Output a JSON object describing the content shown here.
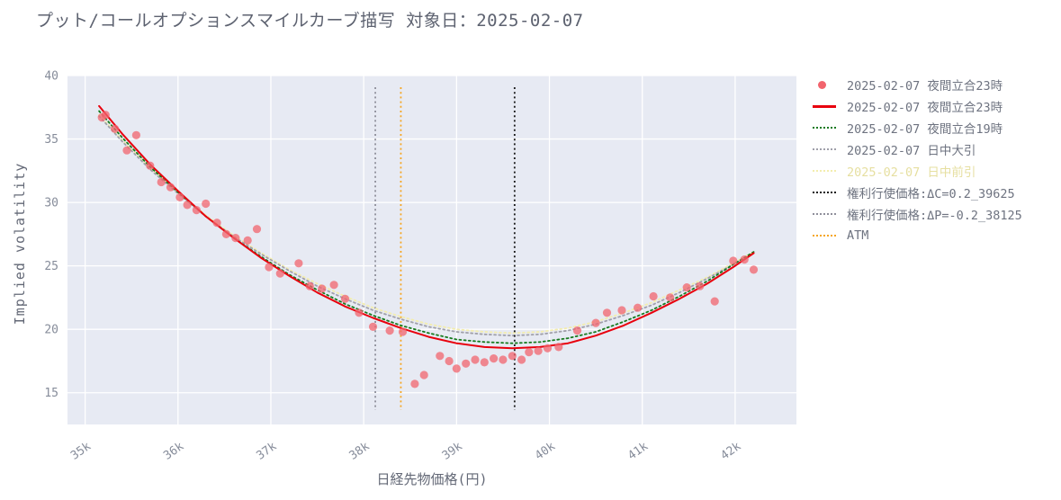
{
  "title": "プット/コールオプションスマイルカーブ描写 対象日：2025-02-07",
  "chart_data": {
    "type": "line",
    "title": "プット/コールオプションスマイルカーブ描写 対象日：2025-02-07",
    "xlabel": "日経先物価格(円)",
    "ylabel": "Implied volatility",
    "xlim": [
      34.81,
      42.66
    ],
    "ylim": [
      12.5,
      40
    ],
    "grid": true,
    "plot_bg": "#e7eaf3",
    "grid_color": "#ffffff",
    "legend_position": "right-outside",
    "xticks": {
      "values": [
        35,
        36,
        37,
        38,
        39,
        40,
        41,
        42
      ],
      "labels": [
        "35k",
        "36k",
        "37k",
        "38k",
        "39k",
        "40k",
        "41k",
        "42k"
      ]
    },
    "yticks": {
      "values": [
        15,
        20,
        25,
        30,
        35,
        40
      ],
      "labels": [
        "15",
        "20",
        "25",
        "30",
        "35",
        "40"
      ]
    },
    "series": [
      {
        "name": "2025-02-07 夜間立合23時",
        "type": "scatter",
        "color": "#f2646d",
        "opacity": 0.75,
        "z": 9,
        "x": [
          35.18,
          35.22,
          35.32,
          35.45,
          35.55,
          35.7,
          35.82,
          35.92,
          36.02,
          36.1,
          36.2,
          36.3,
          36.42,
          36.52,
          36.62,
          36.75,
          36.85,
          36.98,
          37.1,
          37.3,
          37.42,
          37.55,
          37.68,
          37.8,
          37.95,
          38.1,
          38.28,
          38.42,
          38.55,
          38.65,
          38.82,
          38.92,
          39.0,
          39.1,
          39.2,
          39.3,
          39.4,
          39.5,
          39.6,
          39.7,
          39.78,
          39.88,
          39.98,
          40.1,
          40.3,
          40.5,
          40.62,
          40.78,
          40.95,
          41.12,
          41.3,
          41.48,
          41.62,
          41.78,
          41.98,
          42.1,
          42.2
        ],
        "y": [
          36.7,
          36.9,
          35.8,
          34.1,
          35.3,
          32.9,
          31.6,
          31.2,
          30.4,
          29.8,
          29.4,
          29.9,
          28.4,
          27.5,
          27.2,
          27.0,
          27.9,
          24.9,
          24.4,
          25.2,
          23.4,
          23.2,
          23.5,
          22.4,
          21.3,
          20.2,
          19.9,
          19.8,
          15.7,
          16.4,
          17.9,
          17.5,
          16.9,
          17.3,
          17.6,
          17.4,
          17.7,
          17.6,
          17.9,
          17.6,
          18.2,
          18.3,
          18.5,
          18.6,
          19.9,
          20.5,
          21.3,
          21.5,
          21.7,
          22.6,
          22.5,
          23.3,
          23.4,
          22.2,
          25.4,
          25.5,
          24.7
        ]
      },
      {
        "name": "2025-02-07 夜間立合23時",
        "type": "line",
        "style": "solid",
        "color": "#e8000d",
        "width": 2,
        "z": 5,
        "x": [
          35.15,
          35.4,
          35.7,
          36.0,
          36.3,
          36.6,
          36.9,
          37.2,
          37.5,
          37.8,
          38.1,
          38.4,
          38.7,
          39.0,
          39.3,
          39.6,
          39.9,
          40.2,
          40.5,
          40.8,
          41.1,
          41.4,
          41.7,
          42.0,
          42.2
        ],
        "y": [
          37.6,
          35.4,
          33.0,
          30.9,
          28.9,
          27.2,
          25.6,
          24.2,
          22.9,
          21.8,
          20.9,
          20.1,
          19.4,
          18.9,
          18.6,
          18.5,
          18.6,
          18.9,
          19.5,
          20.3,
          21.3,
          22.4,
          23.6,
          25.0,
          26.0
        ]
      },
      {
        "name": "2025-02-07 夜間立合19時",
        "type": "line",
        "style": "dotted",
        "color": "#177a1f",
        "width": 1.8,
        "z": 4,
        "x": [
          35.15,
          35.4,
          35.7,
          36.0,
          36.3,
          36.6,
          36.9,
          37.2,
          37.5,
          37.8,
          38.1,
          38.4,
          38.7,
          39.0,
          39.3,
          39.6,
          39.9,
          40.2,
          40.5,
          40.8,
          41.1,
          41.4,
          41.7,
          42.0,
          42.2
        ],
        "y": [
          37.2,
          35.1,
          32.8,
          30.8,
          28.9,
          27.2,
          25.7,
          24.3,
          23.1,
          22.0,
          21.1,
          20.3,
          19.7,
          19.2,
          19.0,
          18.9,
          19.0,
          19.3,
          19.8,
          20.6,
          21.5,
          22.6,
          23.8,
          25.2,
          26.1
        ]
      },
      {
        "name": "2025-02-07 日中大引",
        "type": "line",
        "style": "dotted",
        "color": "#a0a0aa",
        "width": 1.8,
        "z": 3,
        "x": [
          35.15,
          35.4,
          35.7,
          36.0,
          36.3,
          36.6,
          36.9,
          37.2,
          37.5,
          37.8,
          38.1,
          38.4,
          38.7,
          39.0,
          39.3,
          39.6,
          39.9,
          40.2,
          40.5,
          40.8,
          41.1,
          41.4,
          41.7,
          42.0,
          42.2
        ],
        "y": [
          36.8,
          34.8,
          32.6,
          30.7,
          28.9,
          27.3,
          25.9,
          24.6,
          23.4,
          22.4,
          21.5,
          20.8,
          20.2,
          19.8,
          19.6,
          19.5,
          19.6,
          19.9,
          20.4,
          21.1,
          21.9,
          22.9,
          24.0,
          25.2,
          26.0
        ]
      },
      {
        "name": "2025-02-07 日中前引",
        "type": "line",
        "style": "dotted",
        "color": "#f3edae",
        "width": 1.8,
        "z": 2,
        "x": [
          35.15,
          35.4,
          35.7,
          36.0,
          36.3,
          36.6,
          36.9,
          37.2,
          37.5,
          37.8,
          38.1,
          38.4,
          38.7,
          39.0,
          39.3,
          39.6,
          39.9,
          40.2,
          40.5,
          40.8,
          41.1,
          41.4,
          41.7,
          42.0,
          42.2
        ],
        "y": [
          36.9,
          34.9,
          32.7,
          30.8,
          29.0,
          27.4,
          26.0,
          24.7,
          23.6,
          22.6,
          21.7,
          21.0,
          20.4,
          20.0,
          19.8,
          19.7,
          19.8,
          20.1,
          20.6,
          21.3,
          22.1,
          23.1,
          24.1,
          25.3,
          26.1
        ]
      },
      {
        "name": "権利行使価格:ΔC=0.2_39625",
        "type": "vline",
        "style": "dotted",
        "color": "#1a1a1a",
        "width": 1.8,
        "z": 6,
        "xv": 39.625
      },
      {
        "name": "権利行使価格:ΔP=-0.2_38125",
        "type": "vline",
        "style": "dotted",
        "color": "#8f8f9b",
        "width": 1.8,
        "z": 1,
        "xv": 38.125
      },
      {
        "name": "ATM",
        "type": "vline",
        "style": "dotted",
        "color": "#f5a623",
        "width": 1.8,
        "z": 1,
        "xv": 38.4
      }
    ],
    "legend": [
      {
        "label": "2025-02-07 夜間立合23時",
        "marker": "dot",
        "color": "#f2646d",
        "label_color": "#6e7380"
      },
      {
        "label": "2025-02-07 夜間立合23時",
        "marker": "solid",
        "color": "#e8000d",
        "label_color": "#6e7380"
      },
      {
        "label": "2025-02-07 夜間立合19時",
        "marker": "dotted",
        "color": "#177a1f",
        "label_color": "#6e7380"
      },
      {
        "label": "2025-02-07 日中大引",
        "marker": "dotted",
        "color": "#a0a0aa",
        "label_color": "#6e7380"
      },
      {
        "label": "2025-02-07 日中前引",
        "marker": "dotted",
        "color": "#f3edae",
        "label_color": "#e6dfa0"
      },
      {
        "label": "権利行使価格:ΔC=0.2_39625",
        "marker": "dotted",
        "color": "#1a1a1a",
        "label_color": "#6e7380"
      },
      {
        "label": "権利行使価格:ΔP=-0.2_38125",
        "marker": "dotted",
        "color": "#8f8f9b",
        "label_color": "#6e7380"
      },
      {
        "label": "ATM",
        "marker": "dotted",
        "color": "#f5a623",
        "label_color": "#6e7380"
      }
    ]
  }
}
